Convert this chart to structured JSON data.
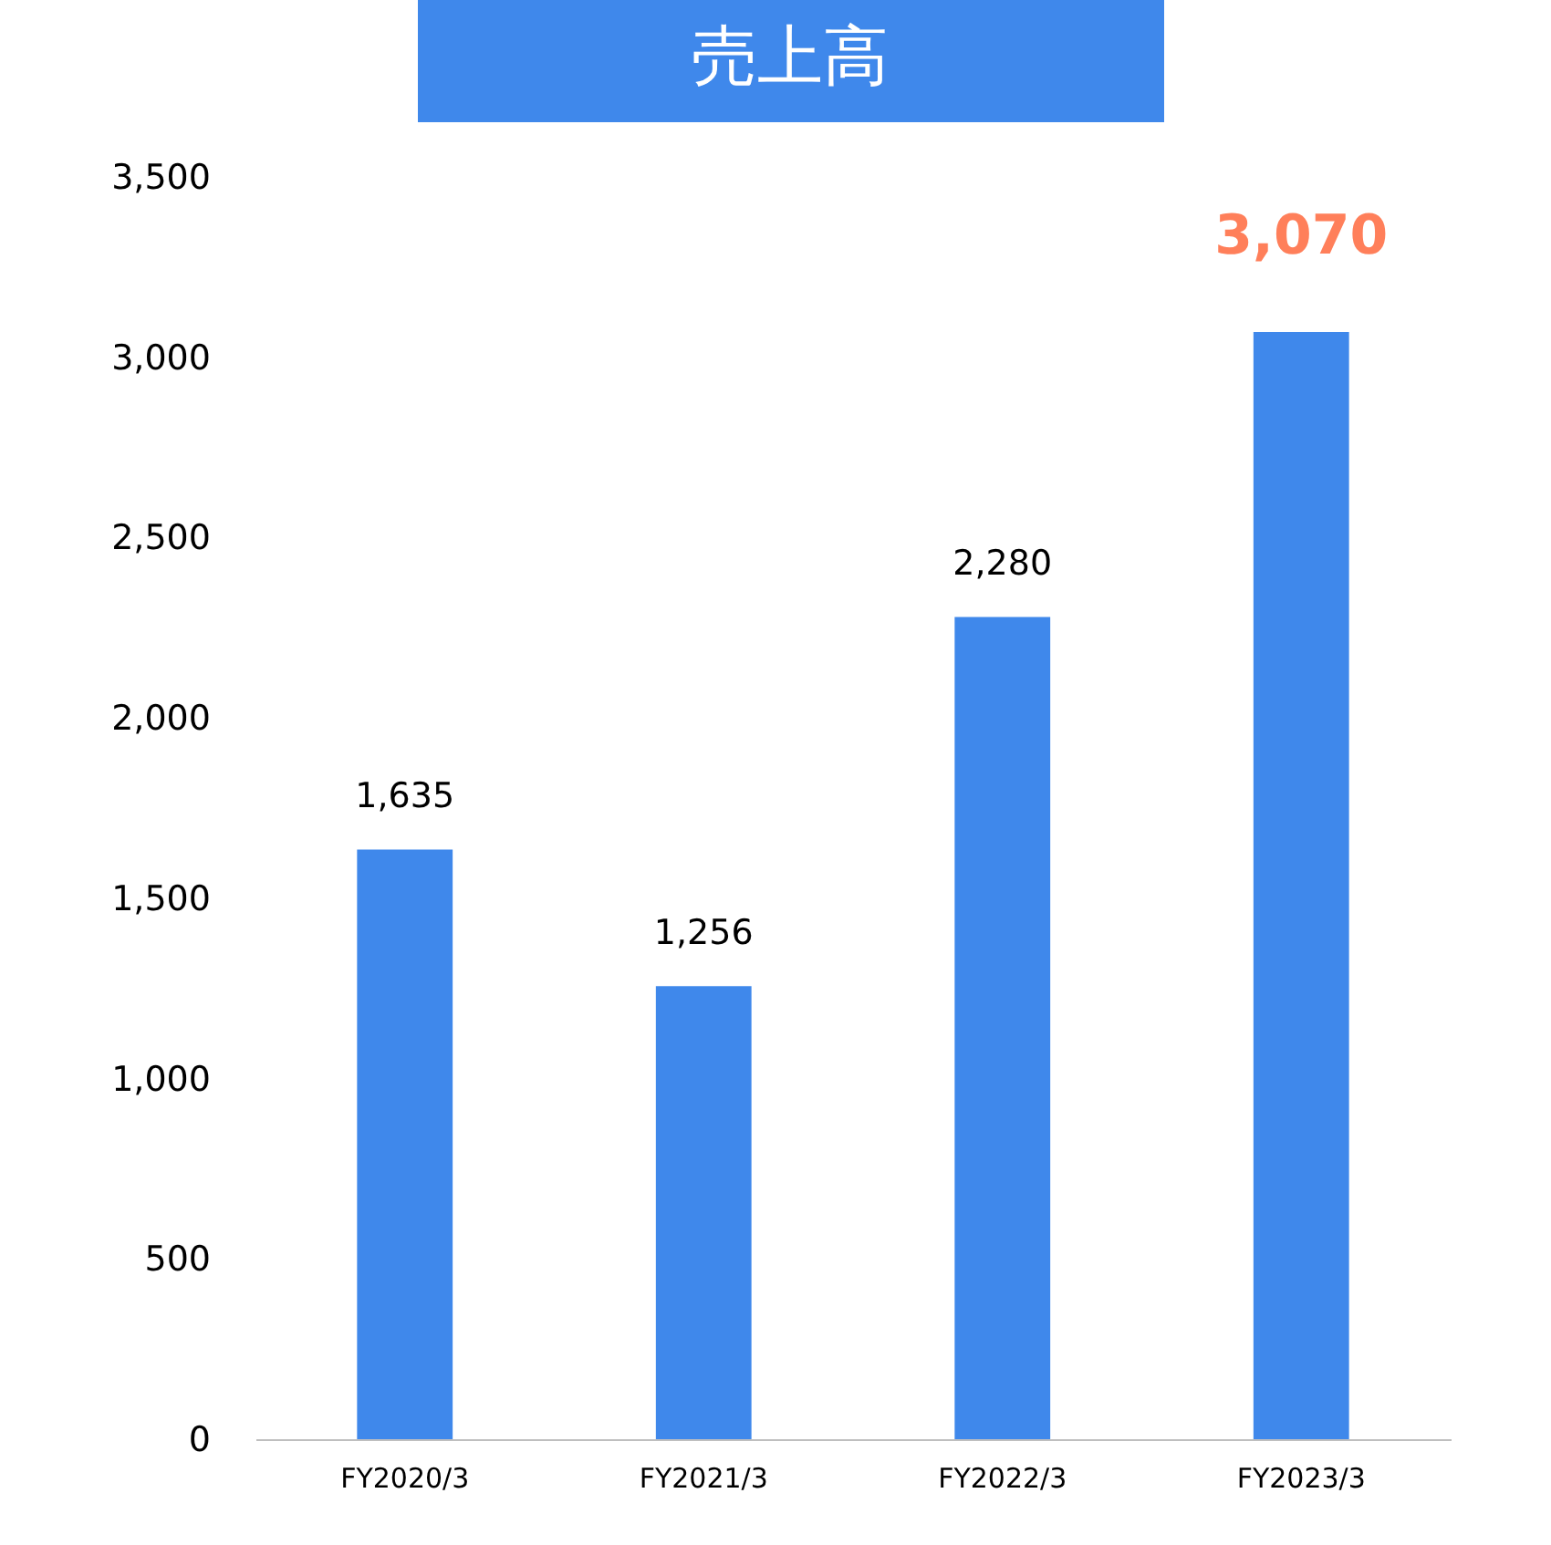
{
  "chart_data": {
    "type": "bar",
    "title": "売上高",
    "categories": [
      "FY2020/3",
      "FY2021/3",
      "FY2022/3",
      "FY2023/3"
    ],
    "values": [
      1635,
      1256,
      2280,
      3070
    ],
    "color": "#3f88eb",
    "value_labels": [
      "1,635",
      "1,256",
      "2,280",
      "3,070"
    ],
    "ylim": [
      0,
      3500
    ],
    "yticks": [
      0,
      500,
      {
        "value": 1000,
        "label": "1,000"
      },
      {
        "value": 1500,
        "label": "1,500"
      },
      {
        "value": 2000,
        "label": "2,000"
      },
      {
        "value": 2500,
        "label": "2,500"
      },
      {
        "value": 3000,
        "label": "3,000"
      },
      {
        "value": 3500,
        "label": "3,500"
      }
    ],
    "grid": false
  }
}
